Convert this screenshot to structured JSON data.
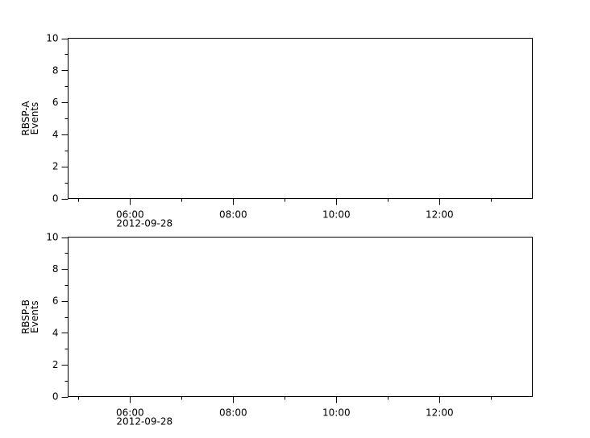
{
  "chart_data": [
    {
      "type": "line",
      "ylabel": [
        "RBSP-A",
        "Events"
      ],
      "ylim": [
        0,
        10
      ],
      "yticks": [
        0,
        2,
        4,
        6,
        8,
        10
      ],
      "xlim": [
        "2012-09-28 04:48",
        "2012-09-28 13:48"
      ],
      "xticks": [
        "06:00",
        "08:00",
        "10:00",
        "12:00"
      ],
      "xdate_label": "2012-09-28",
      "grid": false,
      "series": []
    },
    {
      "type": "line",
      "ylabel": [
        "RBSP-B",
        "Events"
      ],
      "ylim": [
        0,
        10
      ],
      "yticks": [
        0,
        2,
        4,
        6,
        8,
        10
      ],
      "xlim": [
        "2012-09-28 04:48",
        "2012-09-28 13:48"
      ],
      "xticks": [
        "06:00",
        "08:00",
        "10:00",
        "12:00"
      ],
      "xdate_label": "2012-09-28",
      "grid": false,
      "series": []
    }
  ]
}
